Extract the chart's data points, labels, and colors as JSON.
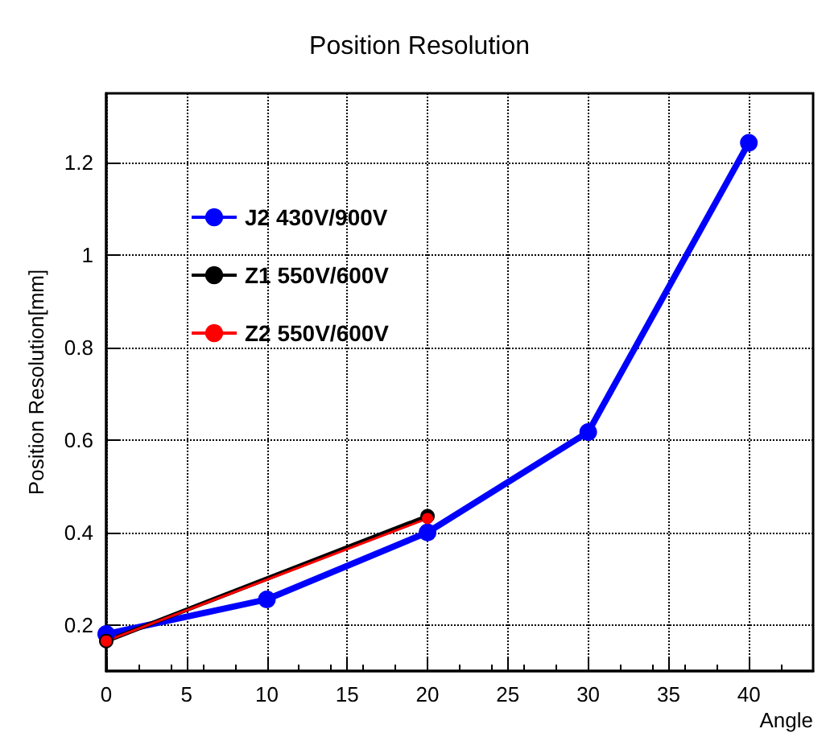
{
  "chart_data": {
    "type": "line",
    "title": "Position Resolution",
    "xlabel": "Angle",
    "ylabel": "Position Resolution[mm]",
    "xlim": [
      0,
      44
    ],
    "xticks": [
      0,
      5,
      10,
      15,
      20,
      25,
      30,
      35,
      40
    ],
    "ylim": [
      0.1,
      1.35
    ],
    "yticks": [
      0.2,
      0.4,
      0.6,
      0.8,
      1,
      1.2
    ],
    "grid": true,
    "legend": "top left",
    "marker": "circle",
    "line_style": "solid",
    "series": [
      {
        "name": "J2 430V/900V",
        "color": "#0000ff",
        "x": [
          0,
          10,
          20,
          30,
          40
        ],
        "values": [
          0.18,
          0.255,
          0.4,
          0.617,
          1.243
        ]
      },
      {
        "name": "Z1 550V/600V",
        "color": "#000000",
        "x": [
          0,
          20
        ],
        "values": [
          0.165,
          0.435
        ]
      },
      {
        "name": "Z2 550V/600V",
        "color": "#ff0000",
        "x": [
          0,
          20
        ],
        "values": [
          0.165,
          0.43
        ]
      }
    ]
  }
}
